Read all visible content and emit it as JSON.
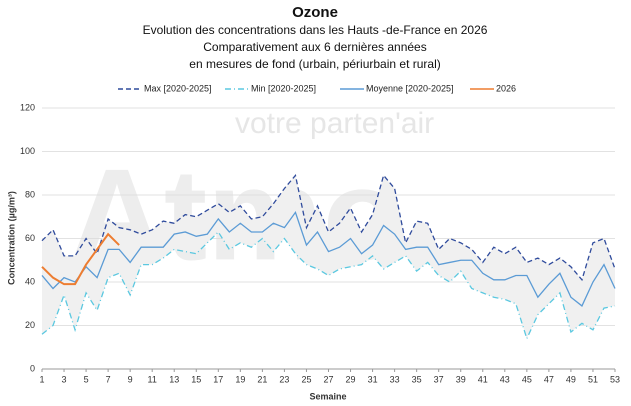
{
  "chart_data": {
    "type": "line",
    "title": "Ozone",
    "subtitle": [
      "Evolution des concentrations dans les Hauts -de-France en 2026",
      "Comparativement aux 6 dernières années",
      "en mesures de fond (urbain, périurbain et rural)"
    ],
    "watermark": [
      "votre parten'air",
      "Atmo"
    ],
    "xlabel": "Semaine",
    "ylabel": "Concentration (µg/m³)",
    "x": [
      1,
      2,
      3,
      4,
      5,
      6,
      7,
      8,
      9,
      10,
      11,
      12,
      13,
      14,
      15,
      16,
      17,
      18,
      19,
      20,
      21,
      22,
      23,
      24,
      25,
      26,
      27,
      28,
      29,
      30,
      31,
      32,
      33,
      34,
      35,
      36,
      37,
      38,
      39,
      40,
      41,
      42,
      43,
      44,
      45,
      46,
      47,
      48,
      49,
      50,
      51,
      52,
      53
    ],
    "xlim": [
      1,
      53
    ],
    "xticks": [
      1,
      3,
      5,
      7,
      9,
      11,
      13,
      15,
      17,
      19,
      21,
      23,
      25,
      27,
      29,
      31,
      33,
      35,
      37,
      39,
      41,
      43,
      45,
      47,
      49,
      51,
      53
    ],
    "ylim": [
      0,
      120
    ],
    "yticks": [
      0,
      20,
      40,
      60,
      80,
      100,
      120
    ],
    "grid": true,
    "band_between": [
      "Max [2020-2025]",
      "Min [2020-2025]"
    ],
    "band_color": "#f0f0f0",
    "series": [
      {
        "name": "Max [2020-2025]",
        "color": "#2f4b9c",
        "style": "dashed",
        "values": [
          59,
          64,
          52,
          52,
          60,
          53,
          69,
          65,
          64,
          62,
          64,
          68,
          67,
          71,
          70,
          73,
          76,
          72,
          75,
          69,
          70,
          76,
          83,
          89,
          65,
          75,
          63,
          67,
          74,
          63,
          71,
          89,
          83,
          58,
          68,
          67,
          55,
          60,
          58,
          55,
          49,
          56,
          53,
          56,
          49,
          51,
          48,
          51,
          47,
          41,
          58,
          60,
          46
        ]
      },
      {
        "name": "Min [2020-2025]",
        "color": "#5bc8e0",
        "style": "dashdot",
        "values": [
          16,
          20,
          34,
          18,
          35,
          27,
          42,
          44,
          34,
          48,
          48,
          51,
          55,
          54,
          53,
          58,
          63,
          55,
          58,
          56,
          60,
          54,
          60,
          53,
          48,
          46,
          43,
          46,
          47,
          48,
          52,
          46,
          49,
          52,
          45,
          49,
          43,
          40,
          45,
          37,
          35,
          33,
          32,
          30,
          14,
          25,
          30,
          35,
          17,
          21,
          18,
          28,
          29
        ]
      },
      {
        "name": "Moyenne [2020-2025]",
        "color": "#5b9bd5",
        "style": "solid",
        "values": [
          43,
          37,
          42,
          40,
          47,
          42,
          55,
          55,
          49,
          56,
          56,
          56,
          62,
          63,
          61,
          62,
          69,
          63,
          67,
          63,
          63,
          67,
          65,
          72,
          57,
          63,
          54,
          56,
          60,
          53,
          57,
          66,
          62,
          55,
          56,
          56,
          48,
          49,
          50,
          50,
          44,
          41,
          41,
          43,
          43,
          33,
          39,
          44,
          33,
          29,
          40,
          48,
          37
        ]
      },
      {
        "name": "2026",
        "color": "#ed7d31",
        "style": "solid",
        "values": [
          47,
          42,
          39,
          39,
          48,
          55,
          62,
          57,
          null,
          null,
          null,
          null,
          null,
          null,
          null,
          null,
          null,
          null,
          null,
          null,
          null,
          null,
          null,
          null,
          null,
          null,
          null,
          null,
          null,
          null,
          null,
          null,
          null,
          null,
          null,
          null,
          null,
          null,
          null,
          null,
          null,
          null,
          null,
          null,
          null,
          null,
          null,
          null,
          null,
          null,
          null,
          null,
          null
        ]
      }
    ]
  }
}
